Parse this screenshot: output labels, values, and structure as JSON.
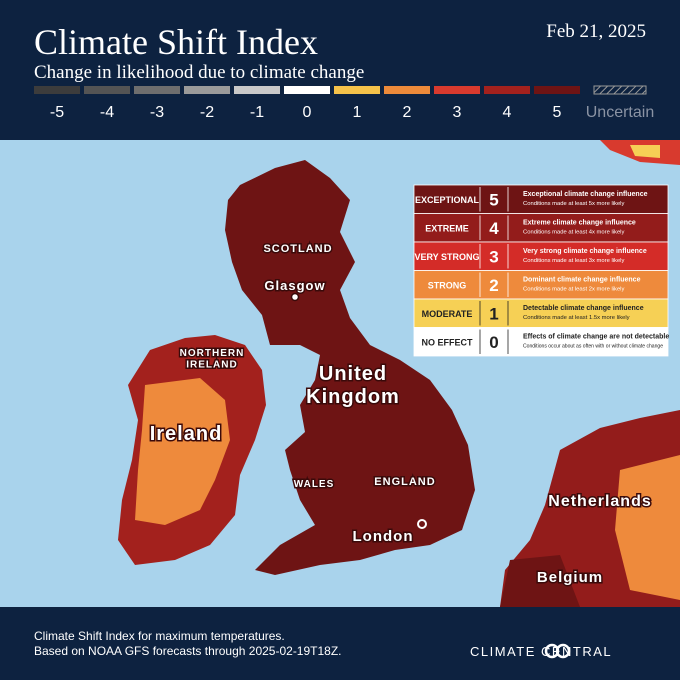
{
  "header": {
    "title": "Climate Shift Index",
    "subtitle": "Change in likelihood due to climate change",
    "date": "Feb 21, 2025"
  },
  "scale": {
    "levels": [
      {
        "label": "-5",
        "color": "#3c3c3c"
      },
      {
        "label": "-4",
        "color": "#545454"
      },
      {
        "label": "-3",
        "color": "#6e6e6e"
      },
      {
        "label": "-2",
        "color": "#9a9a9a"
      },
      {
        "label": "-1",
        "color": "#c8c8c8"
      },
      {
        "label": "0",
        "color": "#ffffff"
      },
      {
        "label": "1",
        "color": "#f5c24a"
      },
      {
        "label": "2",
        "color": "#ec8a3a"
      },
      {
        "label": "3",
        "color": "#d83a2e"
      },
      {
        "label": "4",
        "color": "#a3211d"
      },
      {
        "label": "5",
        "color": "#6e1414"
      }
    ],
    "uncertain": "Uncertain"
  },
  "map": {
    "labels": [
      {
        "lines": [
          "SCOTLAND"
        ]
      },
      {
        "lines": [
          "Glasgow"
        ]
      },
      {
        "lines": [
          "NORTHERN",
          "IRELAND"
        ]
      },
      {
        "lines": [
          "United",
          "Kingdom"
        ]
      },
      {
        "lines": [
          "Ireland"
        ]
      },
      {
        "lines": [
          "WALES"
        ]
      },
      {
        "lines": [
          "ENGLAND"
        ]
      },
      {
        "lines": [
          "London"
        ]
      },
      {
        "lines": [
          "Netherlands"
        ]
      },
      {
        "lines": [
          "Belgium"
        ]
      }
    ]
  },
  "legend": {
    "rows": [
      {
        "category": "EXCEPTIONAL",
        "level": "5",
        "title": "Exceptional climate change influence",
        "detail": "Conditions made at least 5x more likely",
        "color": "#6e1414"
      },
      {
        "category": "EXTREME",
        "level": "4",
        "title": "Extreme climate change influence",
        "detail": "Conditions made at least 4x more likely",
        "color": "#931c1b"
      },
      {
        "category": "VERY STRONG",
        "level": "3",
        "title": "Very strong climate change influence",
        "detail": "Conditions made at least 3x more likely",
        "color": "#d42c28"
      },
      {
        "category": "STRONG",
        "level": "2",
        "title": "Dominant climate change influence",
        "detail": "Conditions made at least 2x more likely",
        "color": "#ee8a3c"
      },
      {
        "category": "MODERATE",
        "level": "1",
        "title": "Detectable climate change influence",
        "detail": "Conditions made at least 1.5x more likely",
        "color": "#f6d055"
      },
      {
        "category": "NO EFFECT",
        "level": "0",
        "title": "Effects of climate change are not detectable",
        "detail": "Conditions occur about as often with or without climate change",
        "color": "#ffffff"
      }
    ]
  },
  "footer": {
    "lines": [
      "Climate Shift Index for maximum temperatures.",
      "Based on NOAA GFS forecasts through 2025-02-19T18Z."
    ],
    "brand": "CLIMATE CENTRAL"
  }
}
